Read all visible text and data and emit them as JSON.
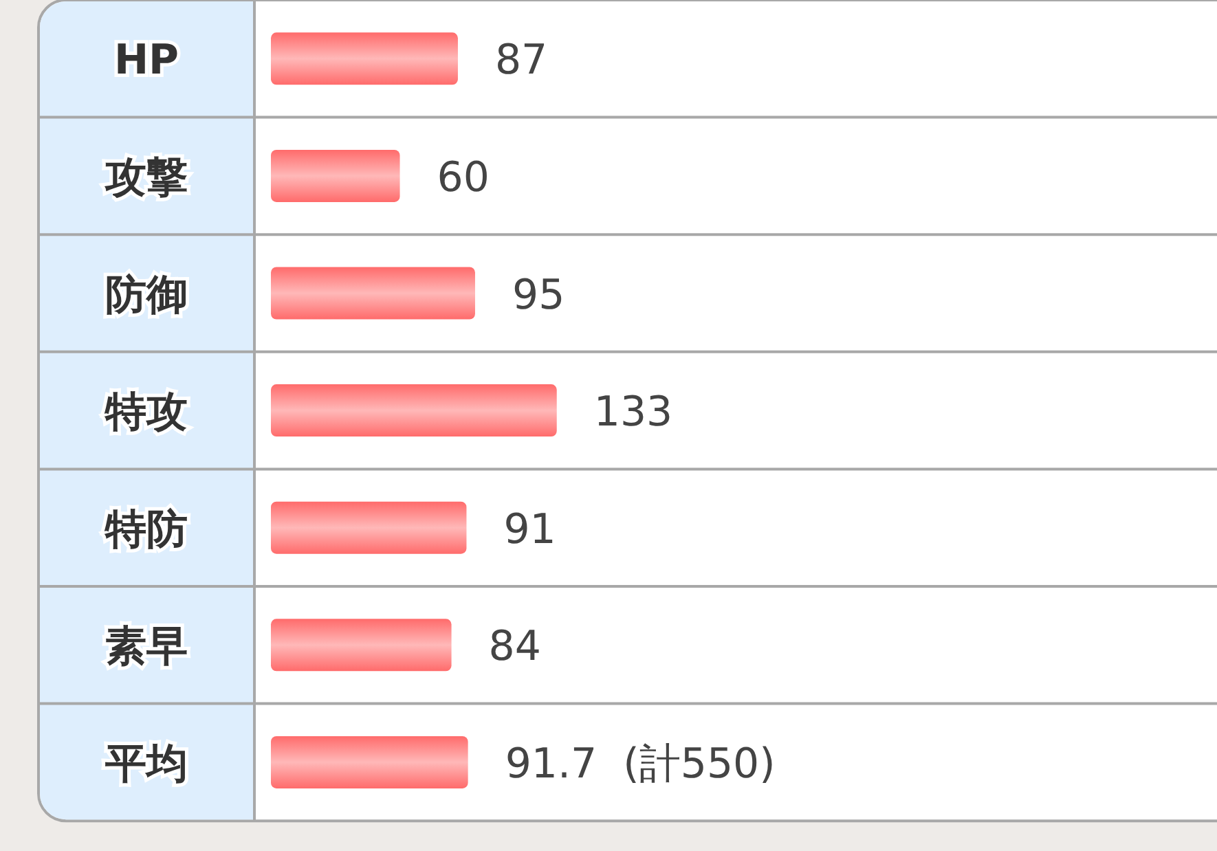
{
  "chart_data": {
    "type": "bar",
    "orientation": "horizontal",
    "categories": [
      "HP",
      "攻撃",
      "防御",
      "特攻",
      "特防",
      "素早",
      "平均"
    ],
    "values": [
      87,
      60,
      95,
      133,
      91,
      84,
      91.7
    ],
    "value_labels": [
      "87",
      "60",
      "95",
      "133",
      "91",
      "84",
      "91.7  (計550)"
    ],
    "color": "#ff6b6b"
  }
}
